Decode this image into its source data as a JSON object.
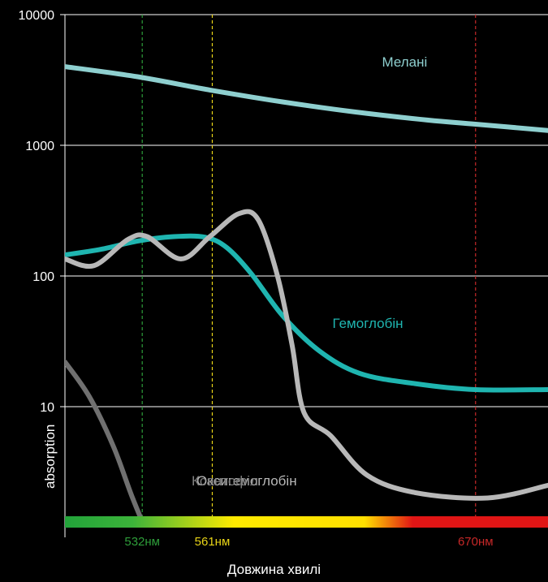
{
  "chart_data": {
    "type": "line",
    "xlabel": "Довжина хвилі",
    "ylabel": "absorption",
    "yscale": "log",
    "xlim": [
      500,
      700
    ],
    "ylim": [
      1,
      10000
    ],
    "y_ticks": [
      "10000",
      "1000",
      "100",
      "10"
    ],
    "grid": "horizontal",
    "markers": [
      {
        "label": "532нм",
        "x": 532,
        "color": "#2e9e3a"
      },
      {
        "label": "561нм",
        "x": 561,
        "color": "#e8d417"
      },
      {
        "label": "670нм",
        "x": 670,
        "color": "#c62828"
      }
    ],
    "spectrum_bar": [
      "#22a33a",
      "#3cb43a",
      "#ffea00",
      "#ffe000",
      "#e01515",
      "#e01515"
    ],
    "series": [
      {
        "name": "Мелані",
        "color": "#8ecfcf",
        "x": [
          500,
          530,
          560,
          590,
          620,
          650,
          670,
          700
        ],
        "y": [
          4000,
          3350,
          2650,
          2150,
          1800,
          1560,
          1450,
          1300
        ]
      },
      {
        "name": "Гемоглобін",
        "color": "#1fb5b0",
        "x": [
          500,
          515,
          530,
          545,
          558,
          567,
          577,
          590,
          605,
          622,
          645,
          670,
          700
        ],
        "y": [
          145,
          160,
          185,
          200,
          198,
          165,
          105,
          50,
          27,
          18,
          15,
          13.5,
          13.5
        ]
      },
      {
        "name": "Оксигемоглобін",
        "color": "#b8b8b8",
        "x": [
          500,
          512,
          526,
          534,
          548,
          560,
          572,
          580,
          588,
          594,
          599,
          610,
          625,
          645,
          675,
          700
        ],
        "y": [
          135,
          120,
          190,
          200,
          135,
          200,
          300,
          270,
          100,
          30,
          9,
          6,
          3,
          2.2,
          2.0,
          2.5
        ]
      },
      {
        "name": "Ксантофіл",
        "color": "#707070",
        "x": [
          500,
          510,
          520,
          528,
          535,
          540
        ],
        "y": [
          22,
          12,
          5,
          2,
          1.0,
          0.7
        ]
      }
    ],
    "annotations": [
      {
        "text": "Мелані",
        "x": 650,
        "y": 4000,
        "color": "#8ecfcf"
      },
      {
        "text": "Гемоглобін",
        "x": 640,
        "y": 40,
        "color": "#1fb5b0"
      },
      {
        "text": "Оксигемоглобін",
        "x": 596,
        "y": 2.5,
        "color": "#b8b8b8"
      },
      {
        "text": "Ксантофіл",
        "x": 580,
        "y": 2.5,
        "color": "#808080"
      }
    ]
  }
}
